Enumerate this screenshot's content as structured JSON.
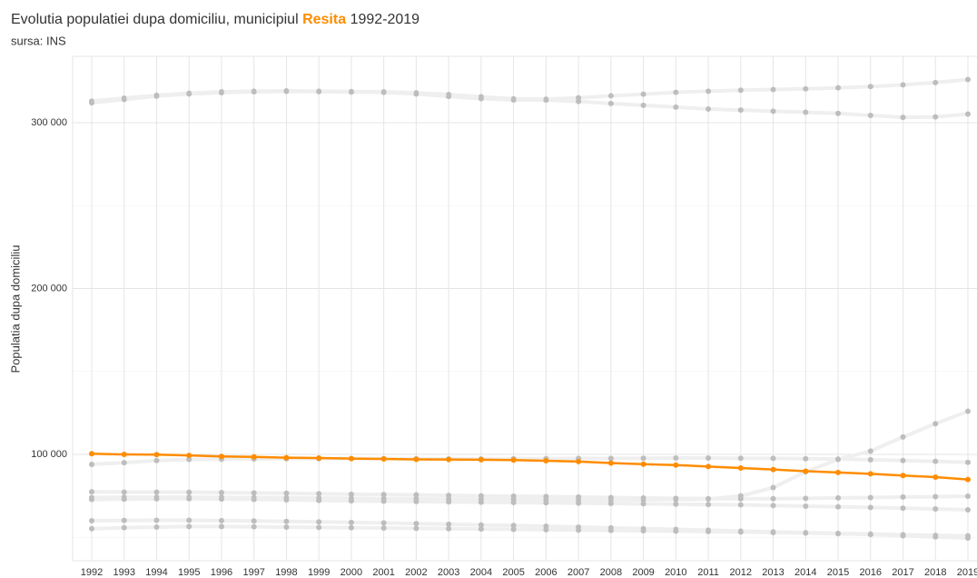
{
  "chart_data": {
    "type": "line",
    "title": {
      "prefix": "Evolutia populatiei dupa domiciliu, municipiul",
      "highlight": "Resita",
      "suffix": "1992-2019"
    },
    "subtitle": "sursa: INS",
    "y_label": "Populatia dupa domiciliu",
    "categories": [
      "1992",
      "1993",
      "1994",
      "1995",
      "1996",
      "1997",
      "1998",
      "1999",
      "2000",
      "2001",
      "2002",
      "2003",
      "2004",
      "2005",
      "2006",
      "2007",
      "2008",
      "2009",
      "2010",
      "2011",
      "2012",
      "2013",
      "2014",
      "2015",
      "2016",
      "2017",
      "2018",
      "2019"
    ],
    "ylim": [
      35900,
      340000
    ],
    "yticks": [
      {
        "value": 100000,
        "label": "100 000"
      },
      {
        "value": 200000,
        "label": "200 000"
      },
      {
        "value": 300000,
        "label": "300 000"
      }
    ],
    "minor_yticks": [
      50000,
      150000,
      250000
    ],
    "grid": true,
    "highlight_color": "#ff8c00",
    "context_color": "#bdbdbd",
    "series": [
      {
        "values": [
          313000,
          314800,
          316500,
          317800,
          318600,
          319000,
          319200,
          319000,
          318800,
          318600,
          318000,
          317000,
          315600,
          314400,
          314200,
          315000,
          316200,
          317200,
          318300,
          319000,
          319600,
          320000,
          320400,
          321000,
          321800,
          322800,
          324200,
          326000
        ]
      },
      {
        "values": [
          312000,
          314000,
          316000,
          317300,
          318100,
          318600,
          318900,
          318700,
          318500,
          318300,
          317300,
          315800,
          314500,
          313700,
          313600,
          312800,
          311600,
          310500,
          309400,
          308200,
          307600,
          306900,
          306300,
          305600,
          304400,
          303200,
          303500,
          305200
        ]
      },
      {
        "values": [
          94000,
          95000,
          96300,
          96900,
          97100,
          97300,
          97400,
          97400,
          97500,
          97500,
          97400,
          97300,
          97300,
          97400,
          97500,
          97600,
          97600,
          97700,
          97800,
          97800,
          97700,
          97600,
          97400,
          97200,
          96800,
          96300,
          95800,
          95200
        ]
      },
      {
        "values": [
          74000,
          74200,
          74200,
          74200,
          74100,
          74000,
          73900,
          73700,
          73500,
          73300,
          73200,
          73000,
          72900,
          72800,
          72700,
          72600,
          72600,
          72700,
          72800,
          73000,
          75000,
          80000,
          89500,
          97000,
          102000,
          110500,
          118500,
          126000
        ]
      },
      {
        "values": [
          77500,
          77300,
          77300,
          77200,
          77000,
          76800,
          76600,
          76300,
          76000,
          75800,
          75600,
          75300,
          75000,
          74800,
          74600,
          74300,
          74000,
          73700,
          73500,
          73300,
          73200,
          73300,
          73500,
          73800,
          74000,
          74300,
          74500,
          74800
        ]
      },
      {
        "values": [
          72800,
          73000,
          73200,
          73300,
          73100,
          72900,
          72600,
          72300,
          72000,
          71800,
          71600,
          71400,
          71200,
          71000,
          70800,
          70600,
          70400,
          70200,
          70000,
          69800,
          69600,
          69200,
          68800,
          68400,
          68000,
          67600,
          67100,
          66600
        ]
      },
      {
        "values": [
          60000,
          60200,
          60300,
          60300,
          60100,
          59900,
          59600,
          59300,
          59000,
          58700,
          58300,
          57900,
          57500,
          57100,
          56700,
          56200,
          55700,
          55200,
          54800,
          54300,
          53800,
          53300,
          52800,
          52400,
          52000,
          51600,
          51200,
          50900
        ]
      },
      {
        "values": [
          55200,
          55800,
          56200,
          56500,
          56500,
          56400,
          56200,
          56000,
          55800,
          55600,
          55400,
          55200,
          55000,
          54800,
          54600,
          54400,
          54200,
          54000,
          53800,
          53500,
          53200,
          52900,
          52600,
          52200,
          51700,
          51000,
          50300,
          49600
        ]
      },
      {
        "name": "Resita",
        "highlight": true,
        "values": [
          100400,
          100000,
          99900,
          99400,
          98800,
          98500,
          98000,
          97800,
          97500,
          97300,
          97000,
          96900,
          96800,
          96600,
          96200,
          95700,
          94800,
          94100,
          93600,
          92700,
          91800,
          90900,
          89900,
          89100,
          88300,
          87300,
          86300,
          84900
        ]
      }
    ]
  }
}
